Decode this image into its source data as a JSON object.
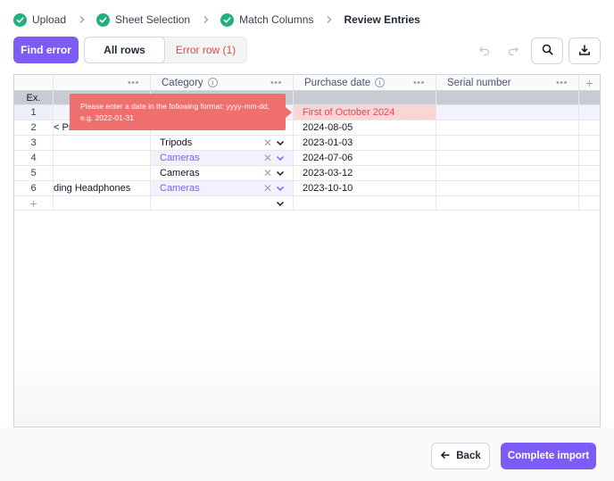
{
  "stepper": {
    "steps": [
      {
        "label": "Upload",
        "done": true
      },
      {
        "label": "Sheet Selection",
        "done": true
      },
      {
        "label": "Match Columns",
        "done": true
      },
      {
        "label": "Review Entries",
        "done": false
      }
    ]
  },
  "toolbar": {
    "find_error_label": "Find error",
    "filter_all_label": "All rows",
    "filter_error_label": "Error row (1)"
  },
  "grid": {
    "columns": [
      "",
      "",
      "Category",
      "Purchase date",
      "Serial number"
    ],
    "example_label": "Ex.",
    "rows": [
      {
        "num": "1",
        "name": "",
        "category": "",
        "category_style": "plain",
        "date": "First of October 2024",
        "date_error": true,
        "serial": ""
      },
      {
        "num": "2",
        "name": "< Pr",
        "category": "",
        "category_style": "plain",
        "date": "2024-08-05",
        "date_error": false,
        "serial": ""
      },
      {
        "num": "3",
        "name": "",
        "category": "Tripods",
        "category_style": "plain",
        "date": "2023-01-03",
        "date_error": false,
        "serial": ""
      },
      {
        "num": "4",
        "name": "",
        "category": "Cameras",
        "category_style": "purple",
        "date": "2024-07-06",
        "date_error": false,
        "serial": ""
      },
      {
        "num": "5",
        "name": "",
        "category": "Cameras",
        "category_style": "plain",
        "date": "2023-03-12",
        "date_error": false,
        "serial": ""
      },
      {
        "num": "6",
        "name": "ding Headphones",
        "category": "Cameras",
        "category_style": "purple",
        "date": "2023-10-10",
        "date_error": false,
        "serial": ""
      }
    ],
    "add_row_symbol": "+",
    "add_column_symbol": "+"
  },
  "tooltip": {
    "text": "Please enter a date in the following format: yyyy-mm-dd, e.g. 2022-01-31"
  },
  "footer": {
    "back_label": "Back",
    "complete_label": "Complete import"
  },
  "colors": {
    "accent": "#7c5cf5",
    "success": "#22b07d",
    "error": "#e5484d",
    "error_bg": "#fbd5d5",
    "tooltip_bg": "#ef6f6f"
  }
}
